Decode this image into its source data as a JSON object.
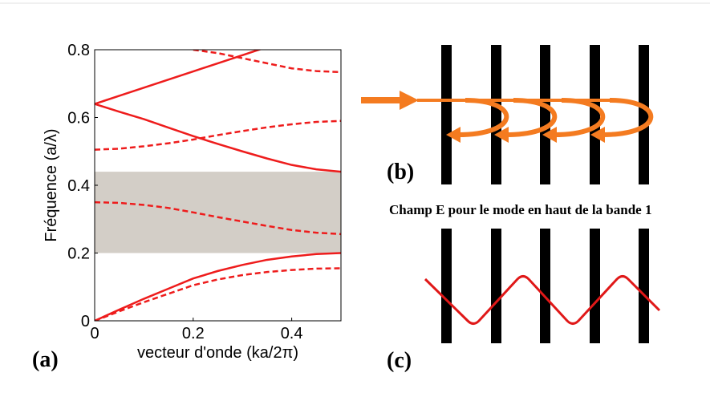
{
  "chart_data": {
    "type": "line",
    "ylabel": "Fréquence (a/λ)",
    "xlabel": "vecteur d'onde (ka/2π)",
    "x": [
      0,
      0.05,
      0.1,
      0.15,
      0.2,
      0.25,
      0.3,
      0.35,
      0.4,
      0.45,
      0.5
    ],
    "xlim": [
      0,
      0.5
    ],
    "xticks": [
      0,
      0.2,
      0.4
    ],
    "ylim": [
      0,
      0.8
    ],
    "yticks": [
      0,
      0.2,
      0.4,
      0.6,
      0.8
    ],
    "band_gap": [
      0.2,
      0.44
    ],
    "band_gap_color": "#d3cec7",
    "series": [
      {
        "color": "#ee1c1c",
        "dash": false,
        "values": [
          0,
          0.033,
          0.065,
          0.095,
          0.125,
          0.147,
          0.165,
          0.18,
          0.19,
          0.197,
          0.2
        ]
      },
      {
        "color": "#ee1c1c",
        "dash": true,
        "values": [
          0,
          0.028,
          0.055,
          0.08,
          0.105,
          0.122,
          0.135,
          0.144,
          0.15,
          0.154,
          0.155
        ]
      },
      {
        "color": "#ee1c1c",
        "dash": true,
        "values": [
          0.35,
          0.348,
          0.342,
          0.333,
          0.32,
          0.306,
          0.293,
          0.28,
          0.268,
          0.26,
          0.256
        ]
      },
      {
        "color": "#ee1c1c",
        "dash": false,
        "values": [
          0.64,
          0.617,
          0.595,
          0.57,
          0.545,
          0.522,
          0.5,
          0.479,
          0.46,
          0.447,
          0.44
        ]
      },
      {
        "color": "#ee1c1c",
        "dash": true,
        "values": [
          0.505,
          0.508,
          0.515,
          0.524,
          0.535,
          0.548,
          0.56,
          0.571,
          0.58,
          0.587,
          0.59
        ]
      },
      {
        "color": "#ee1c1c",
        "dash": false,
        "values": [
          0.64,
          0.664,
          0.688,
          0.712,
          0.736,
          0.76,
          0.784,
          0.808,
          null,
          null,
          null
        ]
      },
      {
        "color": "#ee1c1c",
        "dash": true,
        "values": [
          null,
          null,
          null,
          null,
          0.8,
          0.79,
          0.775,
          0.76,
          0.745,
          0.737,
          0.734
        ]
      }
    ]
  },
  "panels": {
    "a": "(a)",
    "b": "(b)",
    "c": "(c)",
    "caption": "Champ E pour le mode en haut de la bande 1"
  }
}
